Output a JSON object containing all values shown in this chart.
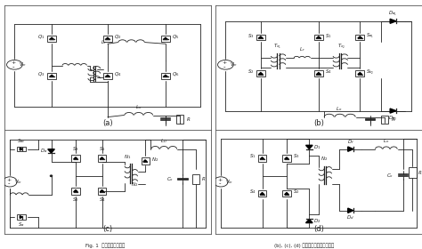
{
  "figure_width": 4.74,
  "figure_height": 2.8,
  "dpi": 100,
  "background_color": "#eeeeea",
  "line_color": "#222222",
  "panel_labels": [
    "(a)",
    "(b)",
    "(c)",
    "(d)"
  ],
  "caption_left": "Fig. 1  现有的典型电路图",
  "caption_right": "(b), (c), (d) 中新型全桥变换器电路图"
}
